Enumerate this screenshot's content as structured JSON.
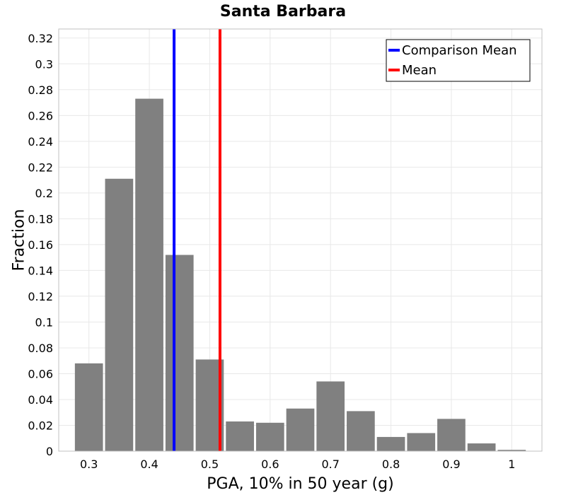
{
  "chart_data": {
    "type": "bar",
    "title": "Santa Barbara",
    "xlabel": "PGA, 10% in 50 year (g)",
    "ylabel": "Fraction",
    "xlim": [
      0.25,
      1.05
    ],
    "ylim": [
      0,
      0.327
    ],
    "xticks": [
      0.3,
      0.4,
      0.5,
      0.6,
      0.7,
      0.8,
      0.9,
      1.0
    ],
    "xtick_labels": [
      "0.3",
      "0.4",
      "0.5",
      "0.6",
      "0.7",
      "0.8",
      "0.9",
      "1"
    ],
    "yticks": [
      0,
      0.02,
      0.04,
      0.06,
      0.08,
      0.1,
      0.12,
      0.14,
      0.16,
      0.18,
      0.2,
      0.22,
      0.24,
      0.26,
      0.28,
      0.3,
      0.32
    ],
    "ytick_labels": [
      "0",
      "0.02",
      "0.04",
      "0.06",
      "0.08",
      "0.1",
      "0.12",
      "0.14",
      "0.16",
      "0.18",
      "0.2",
      "0.22",
      "0.24",
      "0.26",
      "0.28",
      "0.3",
      "0.32"
    ],
    "grid": true,
    "bin_width": 0.05,
    "bins": [
      {
        "x": 0.3,
        "value": 0.068
      },
      {
        "x": 0.35,
        "value": 0.211
      },
      {
        "x": 0.4,
        "value": 0.273
      },
      {
        "x": 0.45,
        "value": 0.152
      },
      {
        "x": 0.5,
        "value": 0.071
      },
      {
        "x": 0.55,
        "value": 0.023
      },
      {
        "x": 0.6,
        "value": 0.022
      },
      {
        "x": 0.65,
        "value": 0.033
      },
      {
        "x": 0.7,
        "value": 0.054
      },
      {
        "x": 0.75,
        "value": 0.031
      },
      {
        "x": 0.8,
        "value": 0.011
      },
      {
        "x": 0.85,
        "value": 0.014
      },
      {
        "x": 0.9,
        "value": 0.025
      },
      {
        "x": 0.95,
        "value": 0.006
      },
      {
        "x": 1.0,
        "value": 0.001
      }
    ],
    "bar_color": "#808080",
    "vertical_lines": [
      {
        "name": "Comparison Mean",
        "x": 0.441,
        "color": "#0000ff"
      },
      {
        "name": "Mean",
        "x": 0.517,
        "color": "#ff0000"
      }
    ],
    "legend": {
      "position": "top-right",
      "entries": [
        {
          "label": "Comparison Mean",
          "color": "#0000ff"
        },
        {
          "label": "Mean",
          "color": "#ff0000"
        }
      ]
    }
  }
}
